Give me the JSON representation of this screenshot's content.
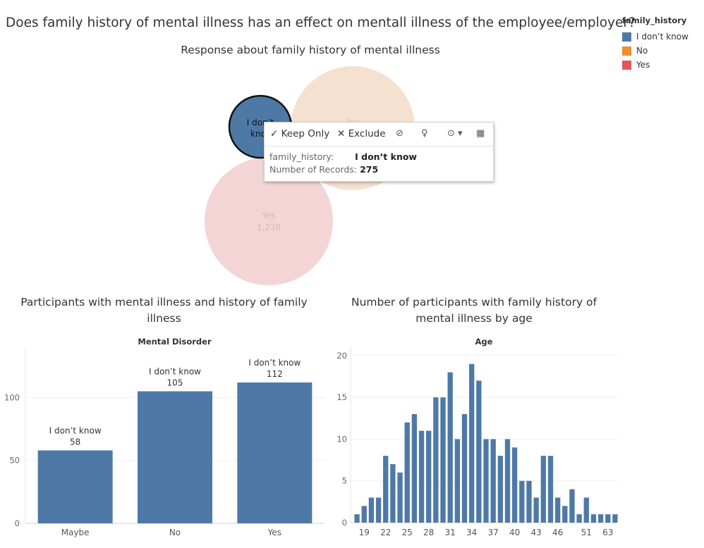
{
  "dashboard": {
    "title": "Does family history of mental illness has an effect on mentall illness of the employee/employer?"
  },
  "legend": {
    "title": "family_history",
    "items": [
      {
        "label": "I don’t know",
        "color": "#4e79a7"
      },
      {
        "label": "No",
        "color": "#f28e2b"
      },
      {
        "label": "Yes",
        "color": "#e15759"
      }
    ]
  },
  "bubble_chart": {
    "title": "Response about family history of mental illness",
    "labels": {
      "dk_line1": "I don’t",
      "dk_line2": "kno",
      "no": "No",
      "yes": "Yes",
      "yes_value": "1,238"
    }
  },
  "tooltip": {
    "keep_only": "Keep Only",
    "exclude": "Exclude",
    "field_label": "family_history:",
    "field_value": "I don’t know",
    "records_label": "Number of Records:",
    "records_value": "275"
  },
  "chart_data": [
    {
      "type": "bubble",
      "title": "Response about family history of mental illness",
      "categories": [
        "I don’t know",
        "No",
        "Yes"
      ],
      "values": [
        275,
        null,
        1238
      ],
      "colors": [
        "#4e79a7",
        "#f28e2b",
        "#e15759"
      ],
      "selected": "I don’t know"
    },
    {
      "type": "bar",
      "title": "Participants with mental illness and history of family illness",
      "xlabel": "Mental Disorder",
      "categories": [
        "Maybe",
        "No",
        "Yes"
      ],
      "series": [
        {
          "name": "I don’t know",
          "values": [
            58,
            105,
            112
          ]
        }
      ],
      "data_labels": [
        "I don’t know",
        "I don’t know",
        "I don’t know"
      ],
      "yticks": [
        0,
        50,
        100
      ],
      "ylim": [
        0,
        140
      ],
      "color": "#4e79a7"
    },
    {
      "type": "bar",
      "title": "Number of participants with family history of mental illness by age",
      "xlabel": "Age",
      "categories": [
        "18",
        "19",
        "20",
        "21",
        "22",
        "23",
        "24",
        "25",
        "26",
        "27",
        "28",
        "29",
        "30",
        "31",
        "32",
        "33",
        "34",
        "35",
        "36",
        "37",
        "38",
        "39",
        "40",
        "41",
        "42",
        "43",
        "44",
        "45",
        "46",
        "47",
        "48",
        "49",
        "50",
        "51",
        "52",
        "53",
        "54"
      ],
      "tick_labels": [
        "19",
        "22",
        "25",
        "28",
        "31",
        "34",
        "37",
        "40",
        "43",
        "46",
        "51",
        "63"
      ],
      "values": [
        1,
        2,
        3,
        3,
        8,
        7,
        6,
        12,
        13,
        11,
        11,
        15,
        15,
        18,
        10,
        13,
        19,
        17,
        10,
        10,
        8,
        10,
        9,
        5,
        5,
        3,
        8,
        8,
        3,
        2,
        4,
        1,
        3,
        1,
        1,
        1,
        1
      ],
      "yticks": [
        0,
        5,
        10,
        15,
        20
      ],
      "ylim": [
        0,
        21
      ],
      "color": "#4e79a7"
    }
  ]
}
